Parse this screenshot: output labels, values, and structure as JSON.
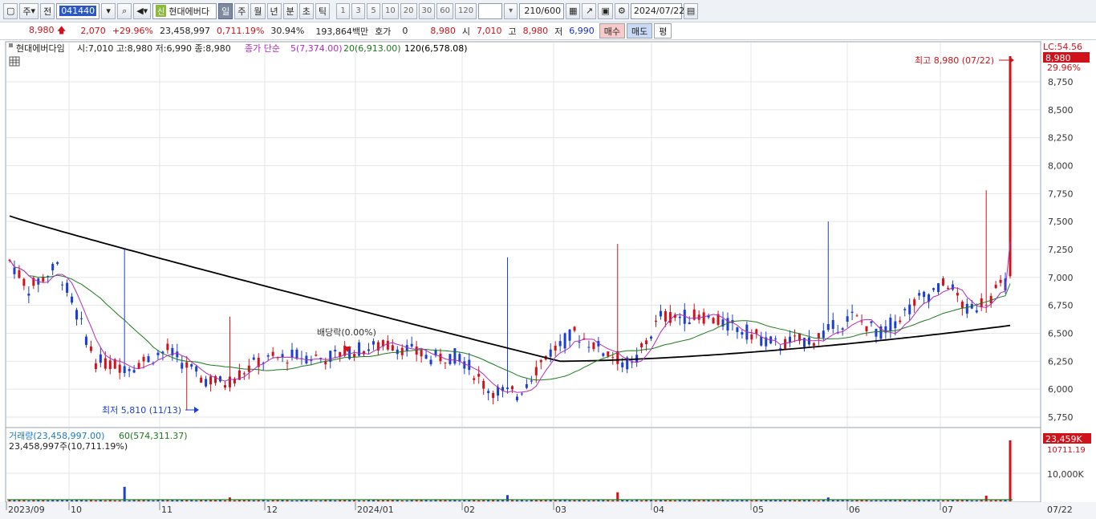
{
  "toolbar": {
    "type": "주",
    "market": "전",
    "code": "041440",
    "name_badge": "신",
    "name": "현대에버다",
    "periods": [
      "일",
      "주",
      "월",
      "년",
      "분",
      "초",
      "틱"
    ],
    "active_period": "일",
    "intervals": [
      "1",
      "3",
      "5",
      "10",
      "20",
      "30",
      "60",
      "120"
    ],
    "count": "210",
    "count_total": "/600",
    "date": "2024/07/22"
  },
  "quote": {
    "price": "8,980",
    "change": "2,070",
    "change_pct": "+29.96%",
    "volume": "23,458,997",
    "vol_ratio": "0,711.19%",
    "turnover_pct": "30.94%",
    "amount": "193,864백만",
    "hoga_label": "호가",
    "hoga": "0",
    "current": "8,980",
    "open_label": "시",
    "open": "7,010",
    "high_label": "고",
    "high": "8,980",
    "low_label": "저",
    "low": "6,990",
    "buy_label": "매수",
    "sell_label": "매도",
    "eval_label": "평"
  },
  "price_panel": {
    "legend_name": "현대에버다임",
    "legend_ohlc": "시:7,010 고:8,980 저:6,990 종:8,980",
    "ma_label": "종가 단순",
    "ma5": "5(7,374.00)",
    "ma20": "20(6,913.00)",
    "ma120": "120(6,578.08)",
    "lc_label": "LC:54.56",
    "price_tag": "8,980",
    "pct_tag": "29.96%",
    "high_annotation": "최고 8,980 (07/22)",
    "low_annotation": "최저 5,810 (11/13)",
    "dividend_annotation": "배당락(0.00%)",
    "yticks": [
      "8,750",
      "8,500",
      "8,250",
      "8,000",
      "7,750",
      "7,500",
      "7,250",
      "7,000",
      "6,750",
      "6,500",
      "6,250",
      "6,000",
      "5,750"
    ]
  },
  "volume_panel": {
    "label": "거래량(23,458,997.00)",
    "ma60": "60(574,311.37)",
    "line2": "23,458,997주(10,711.19%)",
    "tag": "23,459K",
    "tag2": "10711.19",
    "ytick": "10,000K"
  },
  "xaxis": {
    "labels": [
      "2023/09",
      "10",
      "11",
      "12",
      "2024/01",
      "02",
      "03",
      "04",
      "05",
      "06",
      "07"
    ],
    "last": "07/22"
  },
  "colors": {
    "up": "#d0121b",
    "down": "#1b3fd0",
    "ma5": "#b02cb8",
    "ma20": "#1c7a1c",
    "ma120": "#000000"
  },
  "chart_data": {
    "type": "candlestick",
    "series": [
      {
        "name": "5",
        "note": "moving average"
      },
      {
        "name": "20",
        "note": "moving average"
      },
      {
        "name": "120",
        "note": "moving average"
      }
    ],
    "anchor_prices": {
      "start": 7100,
      "low": 5810,
      "high": 8980,
      "last_open": 7010,
      "last_low": 6990
    }
  }
}
